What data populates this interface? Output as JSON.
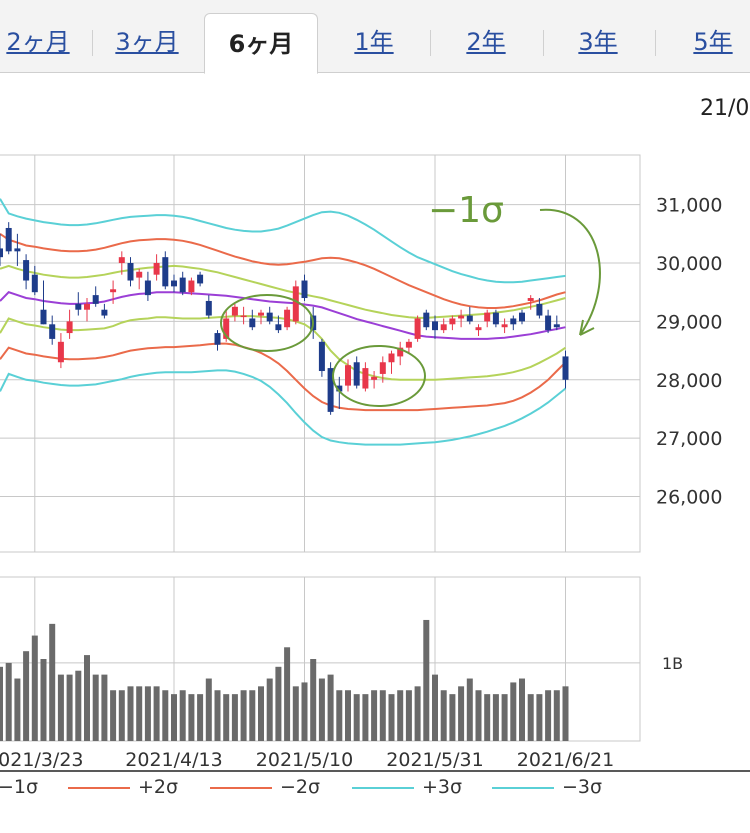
{
  "tabs": [
    {
      "label": "2ヶ月",
      "active": false
    },
    {
      "label": "3ヶ月",
      "active": false
    },
    {
      "label": "6ヶ月",
      "active": true
    },
    {
      "label": "1年",
      "active": false
    },
    {
      "label": "2年",
      "active": false
    },
    {
      "label": "3年",
      "active": false
    },
    {
      "label": "5年",
      "active": false
    }
  ],
  "date_corner": "21/0",
  "annotation": {
    "label": "−1σ",
    "color": "#6a9a3a"
  },
  "chart_data": {
    "type": "candlestick",
    "x_tick_labels": [
      "2021/3/23",
      "2021/4/13",
      "2021/5/10",
      "2021/5/31",
      "2021/6/21"
    ],
    "y_tick_labels": [
      "31,000",
      "30,000",
      "29,000",
      "28,000",
      "27,000",
      "26,000"
    ],
    "y_ticks": [
      31000,
      30000,
      29000,
      28000,
      27000,
      26000
    ],
    "ylim": [
      25050,
      31850
    ],
    "volume_tick_label": "1B",
    "volume_ylim": [
      0,
      2.1
    ],
    "colors": {
      "up": "#e8374a",
      "down": "#1e3c8a",
      "mid": "#9b3fd6",
      "sigma1": "#b5d35a",
      "sigma2": "#ea6a4a",
      "sigma3": "#5ad0d6",
      "volume": "#6a6a6a",
      "grid": "#c8c8c8"
    },
    "legend": [
      {
        "label": "−1σ",
        "color": "#b5d35a"
      },
      {
        "label": "+2σ",
        "color": "#ea6a4a"
      },
      {
        "label": "−2σ",
        "color": "#ea6a4a"
      },
      {
        "label": "+3σ",
        "color": "#5ad0d6"
      },
      {
        "label": "−3σ",
        "color": "#5ad0d6"
      }
    ],
    "ohlc": [
      [
        30250,
        30500,
        29950,
        30100
      ],
      [
        30600,
        30700,
        30150,
        30200
      ],
      [
        30250,
        30500,
        29950,
        30200
      ],
      [
        30050,
        30150,
        29550,
        29700
      ],
      [
        29800,
        29950,
        29450,
        29500
      ],
      [
        29200,
        29700,
        28950,
        28950
      ],
      [
        28950,
        29100,
        28600,
        28700
      ],
      [
        28300,
        28800,
        28200,
        28650
      ],
      [
        28800,
        29200,
        28700,
        29000
      ],
      [
        29300,
        29500,
        29100,
        29200
      ],
      [
        29200,
        29400,
        29000,
        29300
      ],
      [
        29450,
        29600,
        29250,
        29300
      ],
      [
        29200,
        29300,
        29050,
        29100
      ],
      [
        29500,
        29700,
        29300,
        29550
      ],
      [
        30000,
        30200,
        29800,
        30100
      ],
      [
        30000,
        30100,
        29600,
        29700
      ],
      [
        29750,
        29900,
        29550,
        29850
      ],
      [
        29700,
        29850,
        29350,
        29450
      ],
      [
        29800,
        30150,
        29700,
        30000
      ],
      [
        30100,
        30200,
        29550,
        29600
      ],
      [
        29700,
        29800,
        29500,
        29600
      ],
      [
        29750,
        29850,
        29450,
        29500
      ],
      [
        29500,
        29750,
        29450,
        29700
      ],
      [
        29800,
        29850,
        29600,
        29650
      ],
      [
        29350,
        29450,
        29050,
        29100
      ],
      [
        28800,
        28850,
        28500,
        28600
      ],
      [
        28700,
        29200,
        28650,
        29050
      ],
      [
        29100,
        29300,
        29000,
        29250
      ],
      [
        29100,
        29250,
        28950,
        29100
      ],
      [
        29050,
        29200,
        28850,
        28900
      ],
      [
        29100,
        29200,
        28950,
        29150
      ],
      [
        29150,
        29250,
        28950,
        29000
      ],
      [
        28950,
        29100,
        28800,
        28850
      ],
      [
        28900,
        29250,
        28850,
        29200
      ],
      [
        29000,
        29700,
        28950,
        29600
      ],
      [
        29700,
        29800,
        29350,
        29400
      ],
      [
        29100,
        29250,
        28700,
        28850
      ],
      [
        28650,
        28700,
        28050,
        28150
      ],
      [
        28200,
        28300,
        27400,
        27450
      ],
      [
        27900,
        28050,
        27500,
        27800
      ],
      [
        27900,
        28350,
        27800,
        28250
      ],
      [
        28300,
        28400,
        27850,
        27900
      ],
      [
        27850,
        28300,
        27800,
        28200
      ],
      [
        28000,
        28150,
        27850,
        28050
      ],
      [
        28100,
        28400,
        27950,
        28300
      ],
      [
        28300,
        28500,
        28100,
        28450
      ],
      [
        28400,
        28650,
        28250,
        28550
      ],
      [
        28550,
        28700,
        28450,
        28650
      ],
      [
        28700,
        29100,
        28650,
        29050
      ],
      [
        29150,
        29200,
        28850,
        28900
      ],
      [
        29000,
        29100,
        28700,
        28850
      ],
      [
        28850,
        29050,
        28800,
        28950
      ],
      [
        28950,
        29100,
        28850,
        29050
      ],
      [
        29050,
        29200,
        28900,
        29100
      ],
      [
        29100,
        29250,
        28950,
        29000
      ],
      [
        28850,
        28950,
        28750,
        28900
      ],
      [
        29000,
        29200,
        28900,
        29150
      ],
      [
        29150,
        29200,
        28900,
        28950
      ],
      [
        28900,
        29050,
        28800,
        28950
      ],
      [
        29050,
        29100,
        28850,
        28950
      ],
      [
        29150,
        29200,
        28950,
        29000
      ],
      [
        29350,
        29450,
        29200,
        29400
      ],
      [
        29300,
        29400,
        29050,
        29100
      ],
      [
        29100,
        29200,
        28800,
        28850
      ],
      [
        28950,
        29100,
        28850,
        28900
      ],
      [
        28400,
        28500,
        27850,
        28000
      ]
    ],
    "volume": [
      0.95,
      1.0,
      0.8,
      1.15,
      1.35,
      1.05,
      1.5,
      0.85,
      0.85,
      0.9,
      1.1,
      0.85,
      0.85,
      0.65,
      0.65,
      0.7,
      0.7,
      0.7,
      0.7,
      0.65,
      0.6,
      0.65,
      0.6,
      0.6,
      0.8,
      0.65,
      0.6,
      0.6,
      0.65,
      0.65,
      0.7,
      0.8,
      0.95,
      1.2,
      0.7,
      0.75,
      1.05,
      0.8,
      0.85,
      0.65,
      0.65,
      0.6,
      0.6,
      0.65,
      0.65,
      0.6,
      0.65,
      0.65,
      0.7,
      1.55,
      0.85,
      0.65,
      0.6,
      0.7,
      0.8,
      0.65,
      0.6,
      0.6,
      0.6,
      0.75,
      0.8,
      0.6,
      0.6,
      0.65,
      0.65,
      0.7
    ],
    "bands": {
      "mid": [
        29350,
        29500,
        29450,
        29400,
        29380,
        29350,
        29330,
        29310,
        29300,
        29300,
        29310,
        29320,
        29340,
        29380,
        29420,
        29450,
        29470,
        29480,
        29500,
        29500,
        29500,
        29490,
        29480,
        29470,
        29460,
        29450,
        29440,
        29420,
        29400,
        29380,
        29360,
        29340,
        29330,
        29320,
        29310,
        29290,
        29270,
        29240,
        29190,
        29140,
        29090,
        29040,
        29000,
        28960,
        28920,
        28880,
        28840,
        28800,
        28760,
        28740,
        28730,
        28720,
        28710,
        28700,
        28700,
        28700,
        28700,
        28710,
        28720,
        28740,
        28760,
        28780,
        28810,
        28840,
        28870,
        28900
      ],
      "plus1": [
        29900,
        29950,
        29900,
        29860,
        29830,
        29800,
        29780,
        29760,
        29750,
        29750,
        29760,
        29780,
        29800,
        29830,
        29860,
        29880,
        29900,
        29920,
        29930,
        29940,
        29950,
        29940,
        29920,
        29900,
        29870,
        29840,
        29800,
        29760,
        29720,
        29680,
        29640,
        29600,
        29560,
        29520,
        29490,
        29460,
        29430,
        29400,
        29360,
        29320,
        29280,
        29240,
        29200,
        29170,
        29140,
        29110,
        29090,
        29070,
        29060,
        29060,
        29070,
        29080,
        29090,
        29100,
        29110,
        29120,
        29130,
        29150,
        29170,
        29190,
        29220,
        29250,
        29280,
        29320,
        29360,
        29400
      ],
      "minus1": [
        28800,
        29050,
        29000,
        28950,
        28930,
        28900,
        28880,
        28860,
        28850,
        28850,
        28860,
        28870,
        28880,
        28920,
        28980,
        29020,
        29040,
        29050,
        29070,
        29070,
        29060,
        29050,
        29050,
        29050,
        29060,
        29070,
        29080,
        29090,
        29090,
        29090,
        29080,
        29070,
        29060,
        29040,
        29000,
        28950,
        28850,
        28700,
        28500,
        28350,
        28250,
        28150,
        28100,
        28060,
        28030,
        28010,
        28000,
        28000,
        28000,
        28000,
        28000,
        28010,
        28020,
        28030,
        28040,
        28050,
        28060,
        28080,
        28100,
        28130,
        28170,
        28220,
        28290,
        28370,
        28450,
        28550
      ],
      "plus2": [
        30500,
        30400,
        30350,
        30300,
        30280,
        30250,
        30230,
        30210,
        30200,
        30200,
        30210,
        30230,
        30260,
        30300,
        30340,
        30370,
        30390,
        30400,
        30410,
        30410,
        30400,
        30380,
        30350,
        30310,
        30260,
        30210,
        30160,
        30110,
        30070,
        30030,
        30000,
        29980,
        29970,
        29980,
        30000,
        30020,
        30050,
        30080,
        30090,
        30080,
        30050,
        30010,
        29960,
        29900,
        29830,
        29760,
        29690,
        29620,
        29560,
        29500,
        29440,
        29380,
        29330,
        29290,
        29260,
        29240,
        29230,
        29230,
        29240,
        29260,
        29290,
        29320,
        29360,
        29410,
        29460,
        29500
      ],
      "minus2": [
        28350,
        28550,
        28500,
        28450,
        28430,
        28400,
        28380,
        28360,
        28350,
        28350,
        28360,
        28370,
        28390,
        28420,
        28460,
        28500,
        28520,
        28540,
        28550,
        28560,
        28560,
        28570,
        28580,
        28590,
        28610,
        28620,
        28620,
        28600,
        28560,
        28520,
        28460,
        28380,
        28280,
        28150,
        28000,
        27850,
        27720,
        27620,
        27560,
        27520,
        27500,
        27490,
        27480,
        27480,
        27480,
        27480,
        27480,
        27480,
        27480,
        27490,
        27500,
        27510,
        27520,
        27530,
        27540,
        27550,
        27560,
        27580,
        27600,
        27640,
        27700,
        27780,
        27880,
        28000,
        28150,
        28300
      ],
      "plus3": [
        31100,
        30850,
        30800,
        30760,
        30730,
        30700,
        30680,
        30660,
        30650,
        30650,
        30660,
        30680,
        30710,
        30740,
        30770,
        30790,
        30800,
        30810,
        30820,
        30820,
        30810,
        30790,
        30760,
        30720,
        30680,
        30640,
        30600,
        30570,
        30550,
        30540,
        30540,
        30560,
        30590,
        30640,
        30700,
        30760,
        30820,
        30870,
        30880,
        30860,
        30810,
        30740,
        30660,
        30570,
        30470,
        30370,
        30270,
        30180,
        30100,
        30040,
        29980,
        29920,
        29860,
        29810,
        29770,
        29730,
        29700,
        29680,
        29670,
        29670,
        29680,
        29700,
        29720,
        29740,
        29760,
        29780
      ],
      "minus3": [
        27800,
        28100,
        28050,
        28000,
        27980,
        27950,
        27930,
        27910,
        27900,
        27900,
        27910,
        27920,
        27950,
        27980,
        28010,
        28050,
        28080,
        28100,
        28120,
        28130,
        28130,
        28130,
        28130,
        28140,
        28150,
        28160,
        28160,
        28140,
        28100,
        28050,
        27980,
        27880,
        27750,
        27600,
        27430,
        27270,
        27130,
        27020,
        26960,
        26930,
        26910,
        26900,
        26890,
        26890,
        26890,
        26890,
        26890,
        26900,
        26910,
        26920,
        26930,
        26950,
        26970,
        27000,
        27030,
        27070,
        27110,
        27160,
        27210,
        27270,
        27340,
        27420,
        27510,
        27610,
        27730,
        27850
      ]
    }
  }
}
